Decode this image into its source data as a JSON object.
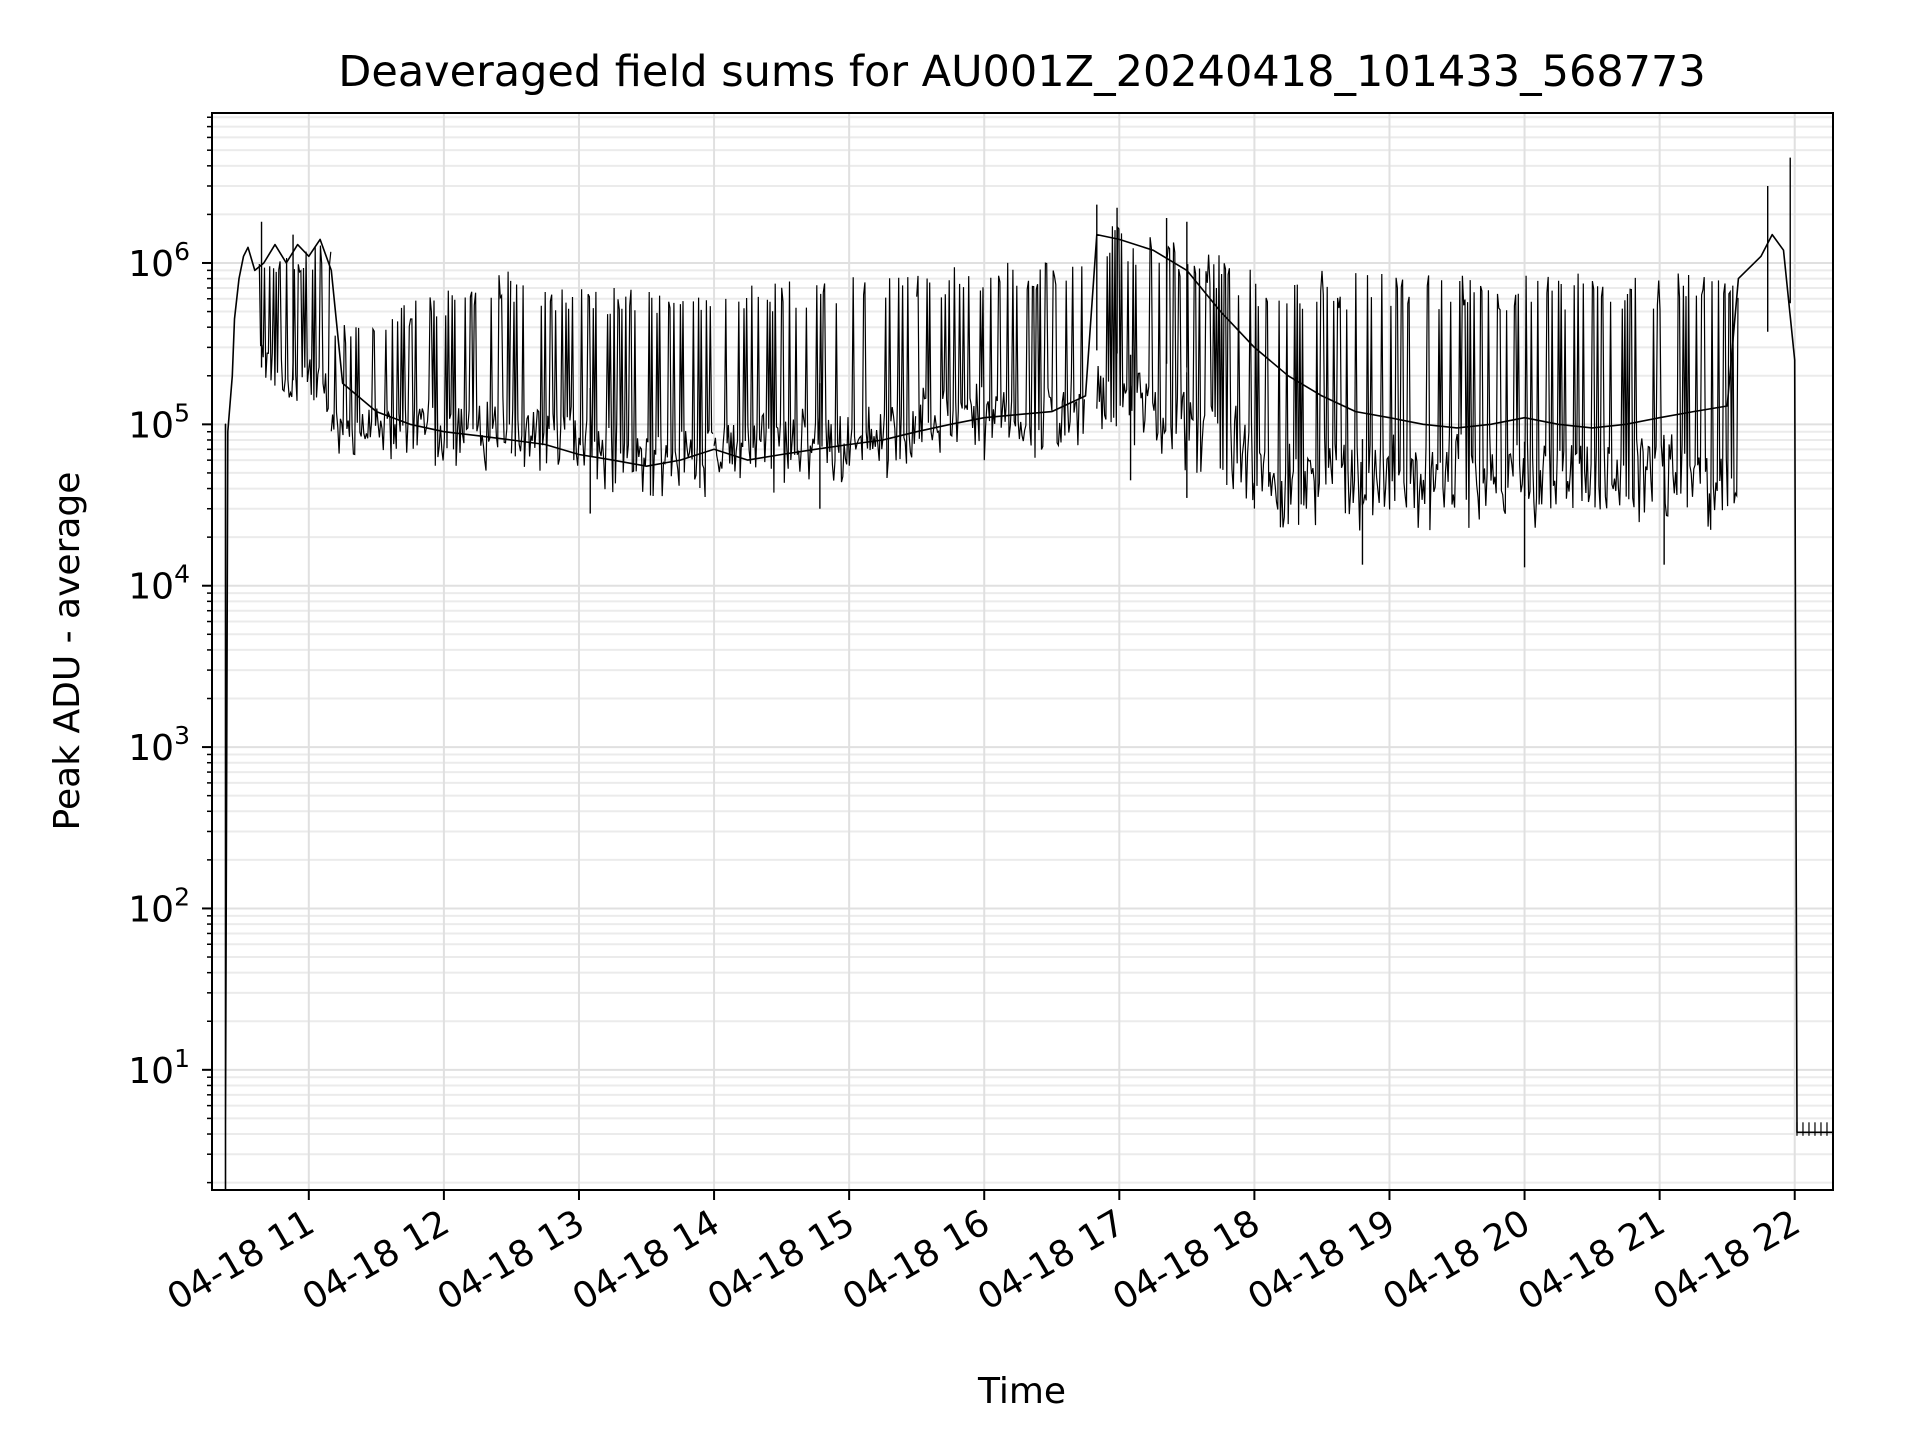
{
  "chart_data": {
    "type": "line",
    "title": "Deaveraged field sums for AU001Z_20240418_101433_568773",
    "xlabel": "Time",
    "ylabel": "Peak ADU - average",
    "x_scale": "time",
    "y_scale": "log",
    "xlim": [
      "2024-04-18 10:17",
      "2024-04-18 22:17"
    ],
    "ylim": [
      1.8,
      8500000
    ],
    "grid": true,
    "legend": "none",
    "x_ticks": [
      {
        "time": "2024-04-18 11:00",
        "label": "04-18 11"
      },
      {
        "time": "2024-04-18 12:00",
        "label": "04-18 12"
      },
      {
        "time": "2024-04-18 13:00",
        "label": "04-18 13"
      },
      {
        "time": "2024-04-18 14:00",
        "label": "04-18 14"
      },
      {
        "time": "2024-04-18 15:00",
        "label": "04-18 15"
      },
      {
        "time": "2024-04-18 16:00",
        "label": "04-18 16"
      },
      {
        "time": "2024-04-18 17:00",
        "label": "04-18 17"
      },
      {
        "time": "2024-04-18 18:00",
        "label": "04-18 18"
      },
      {
        "time": "2024-04-18 19:00",
        "label": "04-18 19"
      },
      {
        "time": "2024-04-18 20:00",
        "label": "04-18 20"
      },
      {
        "time": "2024-04-18 21:00",
        "label": "04-18 21"
      },
      {
        "time": "2024-04-18 22:00",
        "label": "04-18 22"
      }
    ],
    "y_ticks": [
      {
        "value": 10,
        "base": "10",
        "exp": "1"
      },
      {
        "value": 100,
        "base": "10",
        "exp": "2"
      },
      {
        "value": 1000,
        "base": "10",
        "exp": "3"
      },
      {
        "value": 10000,
        "base": "10",
        "exp": "4"
      },
      {
        "value": 100000,
        "base": "10",
        "exp": "5"
      },
      {
        "value": 1000000,
        "base": "10",
        "exp": "6"
      }
    ],
    "series": [
      {
        "color": "#000000",
        "points": [
          [
            "2024-04-18 10:23",
            1.8
          ],
          [
            "2024-04-18 10:23",
            100000
          ],
          [
            "2024-04-18 10:23",
            4.6
          ],
          [
            "2024-04-18 10:24",
            90000
          ],
          [
            "2024-04-18 10:26",
            200000
          ],
          [
            "2024-04-18 10:27",
            450000
          ],
          [
            "2024-04-18 10:29",
            800000
          ],
          [
            "2024-04-18 10:31",
            1100000
          ],
          [
            "2024-04-18 10:33",
            1250000
          ],
          [
            "2024-04-18 10:36",
            900000
          ],
          [
            "2024-04-18 10:40",
            1000000
          ],
          [
            "2024-04-18 10:45",
            1300000
          ],
          [
            "2024-04-18 10:50",
            1000000
          ],
          [
            "2024-04-18 10:55",
            1300000
          ],
          [
            "2024-04-18 11:00",
            1100000
          ],
          [
            "2024-04-18 11:05",
            1400000
          ],
          [
            "2024-04-18 11:10",
            900000
          ],
          [
            "2024-04-18 11:15",
            180000
          ],
          [
            "2024-04-18 11:30",
            120000
          ],
          [
            "2024-04-18 11:45",
            100000
          ],
          [
            "2024-04-18 12:00",
            90000
          ],
          [
            "2024-04-18 12:15",
            85000
          ],
          [
            "2024-04-18 12:30",
            80000
          ],
          [
            "2024-04-18 12:45",
            75000
          ],
          [
            "2024-04-18 13:00",
            65000
          ],
          [
            "2024-04-18 13:15",
            60000
          ],
          [
            "2024-04-18 13:30",
            55000
          ],
          [
            "2024-04-18 13:45",
            60000
          ],
          [
            "2024-04-18 14:00",
            70000
          ],
          [
            "2024-04-18 14:15",
            60000
          ],
          [
            "2024-04-18 14:30",
            65000
          ],
          [
            "2024-04-18 14:45",
            70000
          ],
          [
            "2024-04-18 15:00",
            75000
          ],
          [
            "2024-04-18 15:15",
            80000
          ],
          [
            "2024-04-18 15:30",
            90000
          ],
          [
            "2024-04-18 15:45",
            100000
          ],
          [
            "2024-04-18 16:00",
            110000
          ],
          [
            "2024-04-18 16:15",
            115000
          ],
          [
            "2024-04-18 16:30",
            120000
          ],
          [
            "2024-04-18 16:45",
            150000
          ],
          [
            "2024-04-18 16:50",
            1500000
          ],
          [
            "2024-04-18 17:00",
            1400000
          ],
          [
            "2024-04-18 17:15",
            1200000
          ],
          [
            "2024-04-18 17:30",
            900000
          ],
          [
            "2024-04-18 17:45",
            500000
          ],
          [
            "2024-04-18 18:00",
            300000
          ],
          [
            "2024-04-18 18:15",
            200000
          ],
          [
            "2024-04-18 18:30",
            150000
          ],
          [
            "2024-04-18 18:45",
            120000
          ],
          [
            "2024-04-18 19:00",
            110000
          ],
          [
            "2024-04-18 19:15",
            100000
          ],
          [
            "2024-04-18 19:30",
            95000
          ],
          [
            "2024-04-18 19:45",
            100000
          ],
          [
            "2024-04-18 20:00",
            110000
          ],
          [
            "2024-04-18 20:15",
            100000
          ],
          [
            "2024-04-18 20:30",
            95000
          ],
          [
            "2024-04-18 20:45",
            100000
          ],
          [
            "2024-04-18 21:00",
            110000
          ],
          [
            "2024-04-18 21:15",
            120000
          ],
          [
            "2024-04-18 21:30",
            130000
          ],
          [
            "2024-04-18 21:35",
            800000
          ],
          [
            "2024-04-18 21:45",
            1100000
          ],
          [
            "2024-04-18 21:50",
            1500000
          ],
          [
            "2024-04-18 21:55",
            1200000
          ],
          [
            "2024-04-18 22:00",
            250000
          ],
          [
            "2024-04-18 22:01",
            4.1
          ],
          [
            "2024-04-18 22:17",
            4.1
          ]
        ]
      }
    ],
    "noise_bands": [
      {
        "from": "2024-04-18 10:38",
        "to": "2024-04-18 11:10",
        "low_start": 150000,
        "low_end": 80000,
        "high_start": 1200000,
        "high_end": 1300000
      },
      {
        "from": "2024-04-18 11:10",
        "to": "2024-04-18 12:30",
        "low_start": 60000,
        "low_end": 50000,
        "high_start": 400000,
        "high_end": 900000
      },
      {
        "from": "2024-04-18 12:30",
        "to": "2024-04-18 14:00",
        "low_start": 45000,
        "low_end": 32000,
        "high_start": 850000,
        "high_end": 600000
      },
      {
        "from": "2024-04-18 14:00",
        "to": "2024-04-18 15:30",
        "low_start": 35000,
        "low_end": 45000,
        "high_start": 700000,
        "high_end": 900000
      },
      {
        "from": "2024-04-18 15:30",
        "to": "2024-04-18 16:45",
        "low_start": 55000,
        "low_end": 65000,
        "high_start": 900000,
        "high_end": 1100000
      },
      {
        "from": "2024-04-18 16:50",
        "to": "2024-04-18 18:00",
        "low_start": 80000,
        "low_end": 30000,
        "high_start": 1800000,
        "high_end": 1000000
      },
      {
        "from": "2024-04-18 18:00",
        "to": "2024-04-18 21:35",
        "low_start": 20000,
        "low_end": 20000,
        "high_start": 900000,
        "high_end": 900000
      }
    ],
    "spikes": [
      {
        "time": "2024-04-18 10:39",
        "value": 1800000
      },
      {
        "time": "2024-04-18 10:53",
        "value": 1500000
      },
      {
        "time": "2024-04-18 16:50",
        "value": 2300000
      },
      {
        "time": "2024-04-18 16:59",
        "value": 2200000
      },
      {
        "time": "2024-04-18 17:21",
        "value": 1900000
      },
      {
        "time": "2024-04-18 17:30",
        "value": 1800000
      },
      {
        "time": "2024-04-18 21:48",
        "value": 3000000
      },
      {
        "time": "2024-04-18 21:58",
        "value": 4500000
      },
      {
        "time": "2024-04-18 13:05",
        "value": 28000
      },
      {
        "time": "2024-04-18 14:47",
        "value": 30000
      },
      {
        "time": "2024-04-18 18:48",
        "value": 13500
      },
      {
        "time": "2024-04-18 20:00",
        "value": 13000
      },
      {
        "time": "2024-04-18 21:02",
        "value": 13500
      },
      {
        "time": "2024-04-18 17:30",
        "value": 35000
      },
      {
        "time": "2024-04-18 17:05",
        "value": 45000
      }
    ]
  }
}
